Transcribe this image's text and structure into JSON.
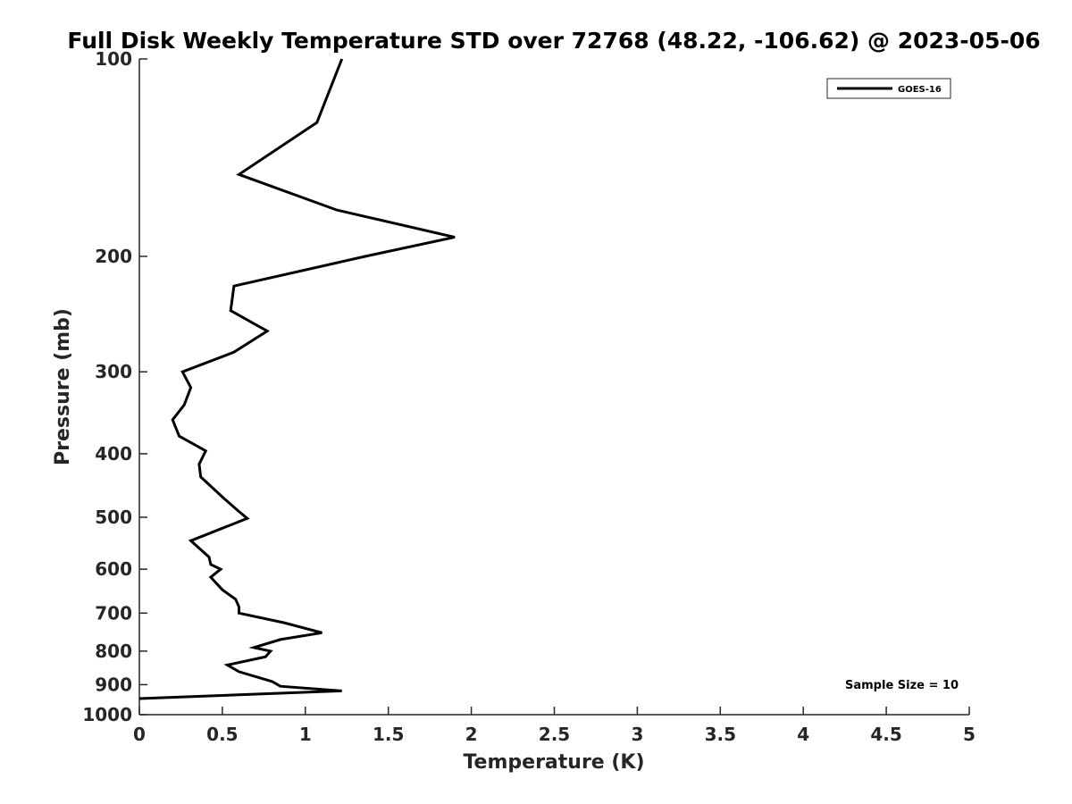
{
  "chart_data": {
    "type": "line",
    "title": "Full Disk Weekly Temperature STD over 72768 (48.22, -106.62) @ 2023-05-06",
    "xlabel": "Temperature (K)",
    "ylabel": "Pressure (mb)",
    "xlim": [
      0,
      5
    ],
    "ylim": [
      100,
      1000
    ],
    "y_scale": "log",
    "y_reversed": true,
    "x_ticks": [
      "0",
      "0.5",
      "1",
      "1.5",
      "2",
      "2.5",
      "3",
      "3.5",
      "4",
      "4.5",
      "5"
    ],
    "y_ticks": [
      "100",
      "200",
      "300",
      "400",
      "500",
      "600",
      "700",
      "800",
      "900",
      "1000"
    ],
    "grid": false,
    "legend_position": "top-right",
    "annotation": "Sample Size = 10",
    "series": [
      {
        "name": "GOES-16",
        "color": "#000000",
        "points": [
          [
            1.22,
            100
          ],
          [
            1.07,
            125
          ],
          [
            0.6,
            150
          ],
          [
            1.19,
            170
          ],
          [
            1.9,
            187
          ],
          [
            1.36,
            200
          ],
          [
            0.57,
            222
          ],
          [
            0.55,
            242
          ],
          [
            0.77,
            260
          ],
          [
            0.57,
            280
          ],
          [
            0.26,
            300
          ],
          [
            0.31,
            317
          ],
          [
            0.27,
            337
          ],
          [
            0.2,
            355
          ],
          [
            0.24,
            376
          ],
          [
            0.4,
            396
          ],
          [
            0.36,
            415
          ],
          [
            0.37,
            434
          ],
          [
            0.51,
            468
          ],
          [
            0.6,
            490
          ],
          [
            0.65,
            502
          ],
          [
            0.31,
            543
          ],
          [
            0.42,
            575
          ],
          [
            0.43,
            590
          ],
          [
            0.49,
            600
          ],
          [
            0.43,
            617
          ],
          [
            0.5,
            645
          ],
          [
            0.58,
            667
          ],
          [
            0.6,
            685
          ],
          [
            0.6,
            700
          ],
          [
            0.87,
            724
          ],
          [
            1.1,
            750
          ],
          [
            0.85,
            768
          ],
          [
            0.69,
            790
          ],
          [
            0.79,
            800
          ],
          [
            0.76,
            816
          ],
          [
            0.53,
            840
          ],
          [
            0.6,
            860
          ],
          [
            0.8,
            890
          ],
          [
            0.85,
            905
          ],
          [
            1.22,
            920
          ],
          [
            0,
            945
          ]
        ]
      }
    ]
  }
}
